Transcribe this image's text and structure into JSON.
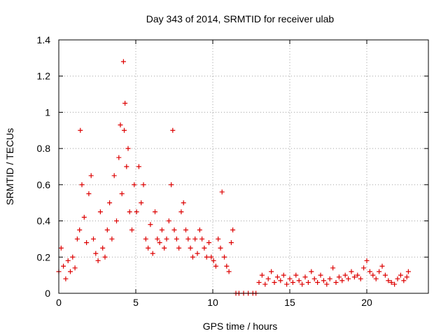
{
  "chart_data": {
    "type": "scatter",
    "title": "Day 343 of 2014, SRMTID for receiver ulab",
    "xlabel": "GPS time / hours",
    "ylabel": "SRMTID / TECUs",
    "xlim": [
      0,
      24
    ],
    "ylim": [
      0,
      1.4
    ],
    "xticks": [
      0,
      5,
      10,
      15,
      20
    ],
    "xtick_labels": [
      "0",
      "5",
      "10",
      "15",
      "20"
    ],
    "yticks": [
      0,
      0.2,
      0.4,
      0.6,
      0.8,
      1.0,
      1.2,
      1.4
    ],
    "ytick_labels": [
      "0",
      "0.2",
      "0.4",
      "0.6",
      "0.8",
      "1",
      "1.2",
      "1.4"
    ],
    "grid": true,
    "marker": "plus",
    "color": "#dd0000",
    "series": [
      {
        "name": "SRMTID",
        "x": [
          0.0,
          0.15,
          0.3,
          0.45,
          0.6,
          0.75,
          0.9,
          1.05,
          1.2,
          1.35,
          1.4,
          1.5,
          1.65,
          1.8,
          1.95,
          2.1,
          2.25,
          2.4,
          2.55,
          2.7,
          2.85,
          3.0,
          3.15,
          3.3,
          3.45,
          3.6,
          3.75,
          3.9,
          4.0,
          4.1,
          4.2,
          4.25,
          4.3,
          4.4,
          4.5,
          4.6,
          4.75,
          4.9,
          5.05,
          5.2,
          5.35,
          5.5,
          5.65,
          5.8,
          5.95,
          6.1,
          6.25,
          6.4,
          6.55,
          6.7,
          6.85,
          7.0,
          7.15,
          7.3,
          7.4,
          7.5,
          7.65,
          7.8,
          7.95,
          8.1,
          8.25,
          8.4,
          8.55,
          8.7,
          8.85,
          9.0,
          9.15,
          9.3,
          9.45,
          9.6,
          9.75,
          9.9,
          10.05,
          10.2,
          10.35,
          10.5,
          10.6,
          10.75,
          10.9,
          11.05,
          11.2,
          11.3,
          11.5,
          11.7,
          12.0,
          12.3,
          12.6,
          12.8,
          13.0,
          13.2,
          13.4,
          13.6,
          13.8,
          14.0,
          14.2,
          14.4,
          14.6,
          14.8,
          15.0,
          15.2,
          15.4,
          15.6,
          15.8,
          16.0,
          16.2,
          16.4,
          16.6,
          16.8,
          17.0,
          17.2,
          17.4,
          17.6,
          17.8,
          18.0,
          18.2,
          18.4,
          18.6,
          18.8,
          19.0,
          19.2,
          19.4,
          19.6,
          19.8,
          20.0,
          20.2,
          20.4,
          20.6,
          20.8,
          21.0,
          21.2,
          21.4,
          21.6,
          21.8,
          22.0,
          22.2,
          22.4,
          22.6,
          22.7
        ],
        "y": [
          0.12,
          0.25,
          0.15,
          0.08,
          0.18,
          0.12,
          0.2,
          0.14,
          0.3,
          0.35,
          0.9,
          0.6,
          0.42,
          0.28,
          0.55,
          0.65,
          0.3,
          0.22,
          0.18,
          0.45,
          0.25,
          0.2,
          0.35,
          0.5,
          0.3,
          0.65,
          0.4,
          0.75,
          0.93,
          0.55,
          1.28,
          0.9,
          1.05,
          0.7,
          0.8,
          0.45,
          0.35,
          0.6,
          0.45,
          0.7,
          0.5,
          0.6,
          0.3,
          0.25,
          0.38,
          0.22,
          0.45,
          0.3,
          0.28,
          0.35,
          0.25,
          0.3,
          0.4,
          0.6,
          0.9,
          0.35,
          0.3,
          0.25,
          0.45,
          0.5,
          0.35,
          0.3,
          0.25,
          0.2,
          0.3,
          0.22,
          0.35,
          0.3,
          0.25,
          0.2,
          0.28,
          0.2,
          0.18,
          0.15,
          0.3,
          0.25,
          0.56,
          0.2,
          0.15,
          0.12,
          0.28,
          0.35,
          0.0,
          0.0,
          0.0,
          0.0,
          0.0,
          0.0,
          0.06,
          0.1,
          0.05,
          0.08,
          0.12,
          0.06,
          0.09,
          0.07,
          0.1,
          0.05,
          0.08,
          0.06,
          0.1,
          0.07,
          0.05,
          0.09,
          0.06,
          0.12,
          0.08,
          0.06,
          0.1,
          0.07,
          0.05,
          0.08,
          0.14,
          0.06,
          0.09,
          0.07,
          0.1,
          0.08,
          0.12,
          0.09,
          0.1,
          0.08,
          0.14,
          0.18,
          0.12,
          0.1,
          0.08,
          0.12,
          0.15,
          0.1,
          0.07,
          0.06,
          0.05,
          0.08,
          0.1,
          0.07,
          0.09,
          0.12
        ]
      }
    ]
  }
}
